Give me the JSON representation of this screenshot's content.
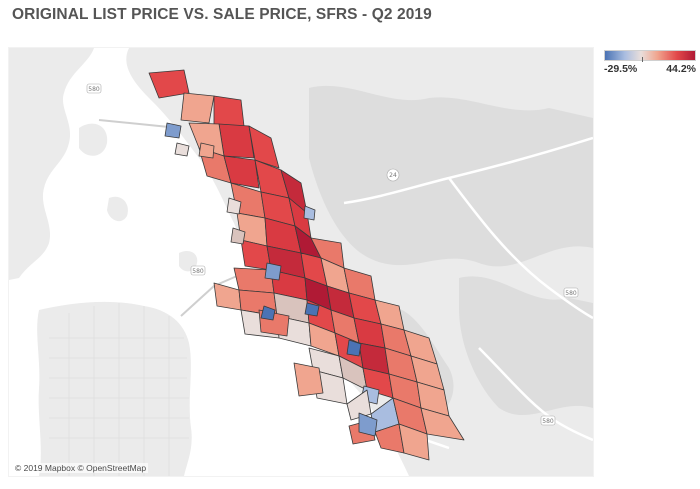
{
  "title": "ORIGINAL LIST PRICE VS. SALE PRICE, SFRS - Q2 2019",
  "legend": {
    "min_label": "-29.5%",
    "max_label": "44.2%",
    "min_color": "#4b73b4",
    "mid_color": "#e9dedb",
    "max_color": "#b01a35"
  },
  "map": {
    "attribution": "© 2019 Mapbox © OpenStreetMap",
    "highway_labels": [
      "580",
      "24",
      "580",
      "580",
      "580"
    ],
    "land_color": "#ebebeb",
    "water_color": "#ffffff",
    "hills_color": "#d9d9d9"
  }
}
